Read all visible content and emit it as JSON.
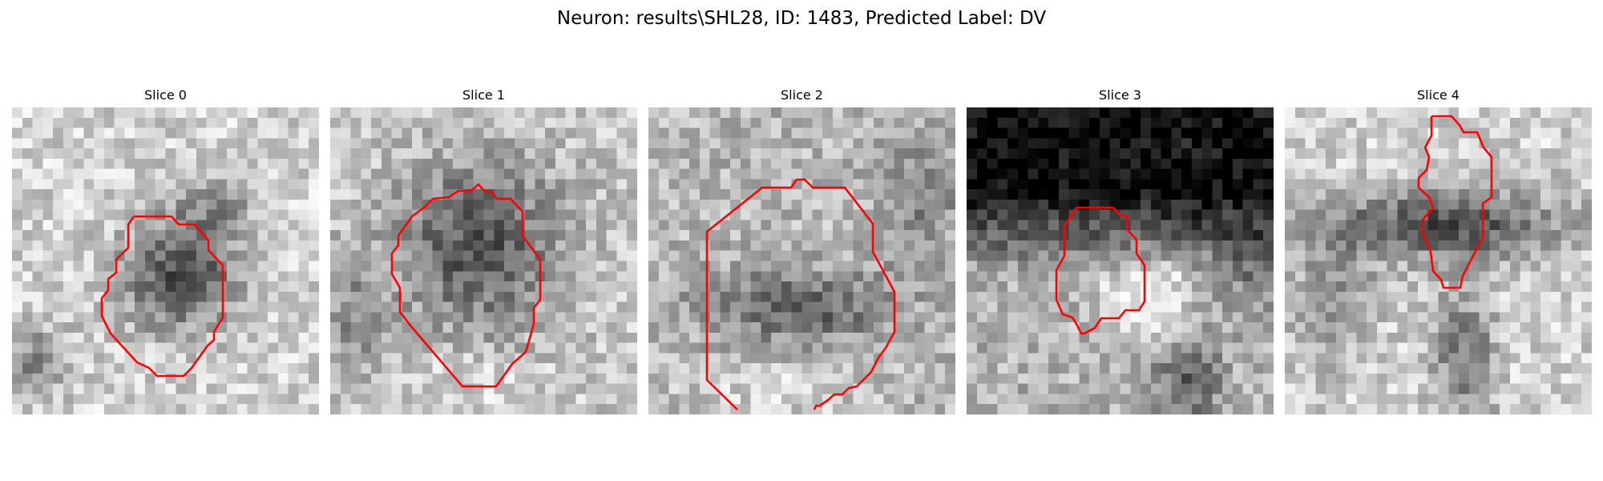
{
  "figure": {
    "title": "Neuron: results\\SHL28, ID: 1483, Predicted Label: DV"
  },
  "slices": [
    {
      "title": "Slice 0",
      "background": "light",
      "contour_color": "#ff0000"
    },
    {
      "title": "Slice 1",
      "background": "light",
      "contour_color": "#ff0000"
    },
    {
      "title": "Slice 2",
      "background": "light",
      "contour_color": "#ff0000"
    },
    {
      "title": "Slice 3",
      "background": "dark",
      "contour_color": "#ff0000"
    },
    {
      "title": "Slice 4",
      "background": "light",
      "contour_color": "#ff0000"
    }
  ]
}
